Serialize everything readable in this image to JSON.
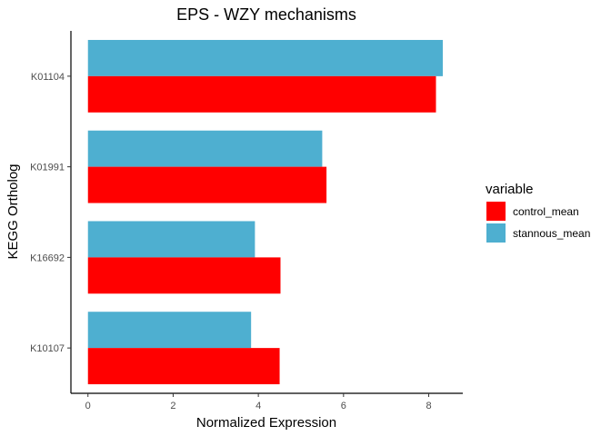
{
  "chart_data": {
    "type": "bar",
    "orientation": "horizontal",
    "title": "EPS - WZY mechanisms",
    "xlabel": "Normalized Expression",
    "ylabel": "KEGG Ortholog",
    "categories": [
      "K01104",
      "K01991",
      "K16692",
      "K10107"
    ],
    "series": [
      {
        "name": "control_mean",
        "color": "#FF0000",
        "values": [
          8.17,
          5.6,
          4.52,
          4.5
        ]
      },
      {
        "name": "stannous_mean",
        "color": "#4EAFD0",
        "values": [
          8.33,
          5.5,
          3.92,
          3.83
        ]
      }
    ],
    "xlim": [
      -0.4,
      8.8
    ],
    "xticks": [
      0,
      2,
      4,
      6,
      8
    ],
    "grid": false,
    "legend": {
      "title": "variable",
      "position": "right"
    }
  }
}
